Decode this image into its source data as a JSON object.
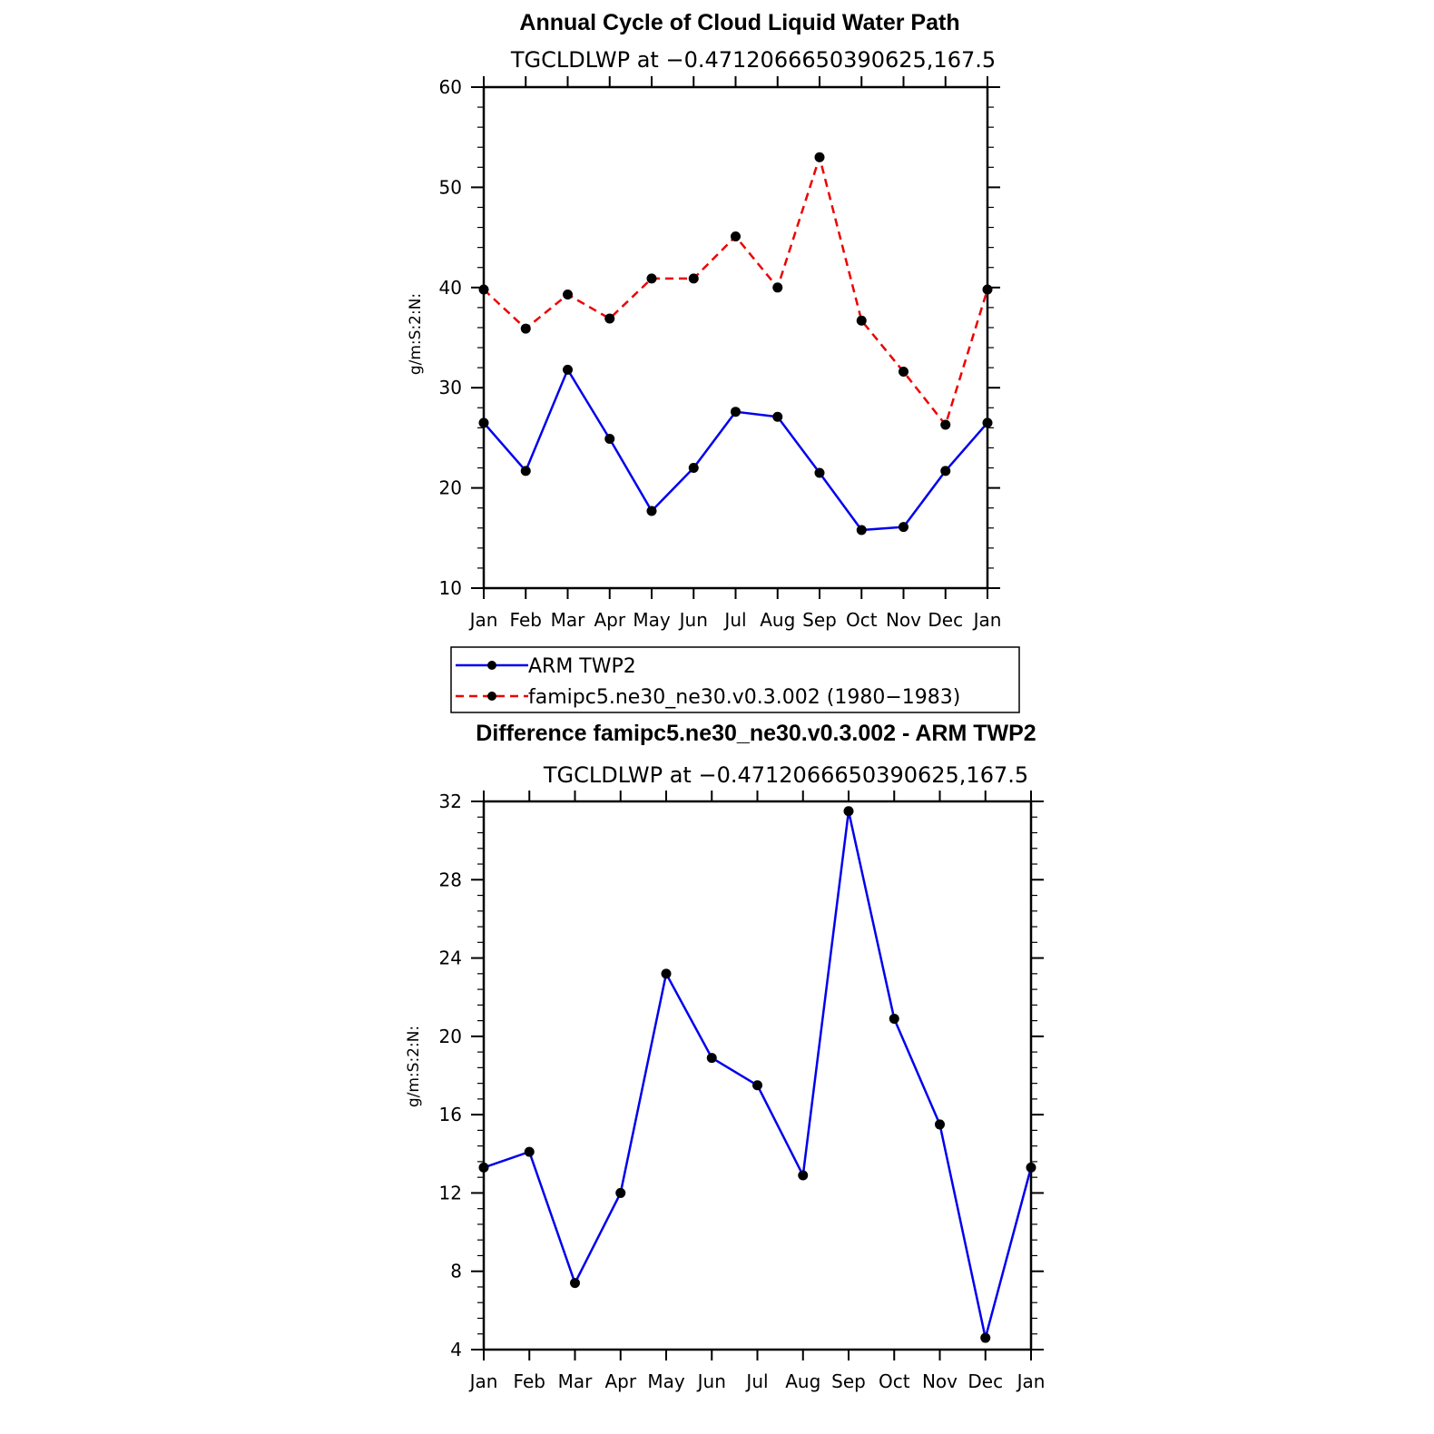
{
  "chart_data": [
    {
      "type": "line",
      "title": "Annual Cycle of Cloud Liquid Water Path",
      "subtitle": "TGCLDLWP at −0.4712066650390625,167.5",
      "xlabel": "",
      "ylabel": "g/m:S:2:N:",
      "categories": [
        "Jan",
        "Feb",
        "Mar",
        "Apr",
        "May",
        "Jun",
        "Jul",
        "Aug",
        "Sep",
        "Oct",
        "Nov",
        "Dec",
        "Jan"
      ],
      "ylim": [
        10,
        60
      ],
      "yticks": [
        10,
        20,
        30,
        40,
        50,
        60
      ],
      "series": [
        {
          "name": "ARM TWP2",
          "color": "#0000ee",
          "dash": "solid",
          "values": [
            26.5,
            21.7,
            31.8,
            24.9,
            17.7,
            22.0,
            27.6,
            27.1,
            21.5,
            15.8,
            16.1,
            21.7,
            26.5
          ]
        },
        {
          "name": "famipc5.ne30_ne30.v0.3.002 (1980−1983)",
          "color": "#ee0000",
          "dash": "dashed",
          "values": [
            39.8,
            35.9,
            39.3,
            36.9,
            40.9,
            40.9,
            45.1,
            40.0,
            53.0,
            36.7,
            31.6,
            26.3,
            39.8
          ]
        }
      ]
    },
    {
      "type": "line",
      "title": "Difference famipc5.ne30_ne30.v0.3.002 - ARM TWP2",
      "subtitle": "TGCLDLWP at −0.4712066650390625,167.5",
      "xlabel": "",
      "ylabel": "g/m:S:2:N:",
      "categories": [
        "Jan",
        "Feb",
        "Mar",
        "Apr",
        "May",
        "Jun",
        "Jul",
        "Aug",
        "Sep",
        "Oct",
        "Nov",
        "Dec",
        "Jan"
      ],
      "ylim": [
        4,
        32
      ],
      "yticks": [
        4,
        8,
        12,
        16,
        20,
        24,
        28,
        32
      ],
      "series": [
        {
          "name": "Difference",
          "color": "#0000ee",
          "dash": "solid",
          "values": [
            13.3,
            14.1,
            7.4,
            12.0,
            23.2,
            18.9,
            17.5,
            12.9,
            31.5,
            20.9,
            15.5,
            4.6,
            13.3
          ]
        }
      ]
    }
  ]
}
